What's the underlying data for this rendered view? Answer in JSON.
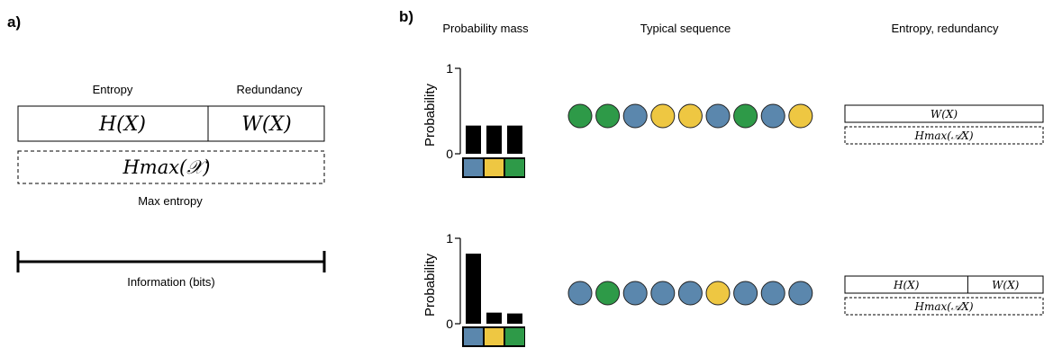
{
  "panel_a": {
    "label": "a)",
    "entropy_label": "Entropy",
    "redundancy_label": "Redundancy",
    "hx_label": "H(X)",
    "wx_label": "W(X)",
    "hmax_label": "Hmax(𝒳)",
    "max_entropy_label": "Max entropy",
    "info_label": "Information (bits)"
  },
  "panel_b": {
    "label": "b)",
    "col_prob_title": "Probability mass",
    "col_seq_title": "Typical sequence",
    "col_ent_title": "Entropy, redundancy",
    "ylabel": "Probability",
    "y_tick_top": "1",
    "y_tick_bottom": "0",
    "colors": {
      "blue": "#5b87ad",
      "yellow": "#eec742",
      "green": "#2e9a48"
    },
    "rows": [
      {
        "bars": [
          0.33,
          0.33,
          0.33
        ],
        "categories": [
          "blue",
          "yellow",
          "green"
        ],
        "sequence": [
          "green",
          "green",
          "blue",
          "yellow",
          "yellow",
          "blue",
          "green",
          "blue",
          "yellow"
        ],
        "entropy_fraction": 0,
        "w_label": "W(X)",
        "hmax_label": "Hmax(𝒜X)"
      },
      {
        "bars": [
          0.82,
          0.13,
          0.12
        ],
        "categories": [
          "blue",
          "yellow",
          "green"
        ],
        "sequence": [
          "blue",
          "green",
          "blue",
          "blue",
          "blue",
          "yellow",
          "blue",
          "blue",
          "blue"
        ],
        "entropy_fraction": 0.62,
        "h_label": "H(X)",
        "w_label": "W(X)",
        "hmax_label": "Hmax(𝒜X)"
      }
    ]
  }
}
